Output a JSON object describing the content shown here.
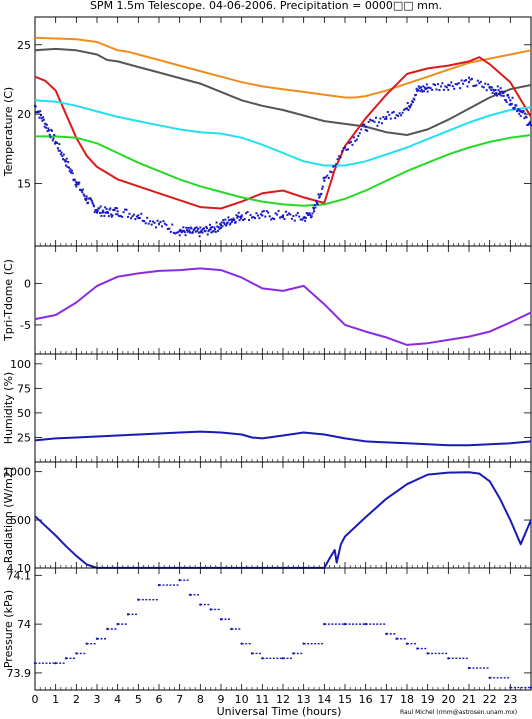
{
  "title": "SPM 1.5m Telescope. 04-06-2006. Precipitation = 0000□□ mm.",
  "xlabel": "Universal Time (hours)",
  "credit": "Raul Michel (rmm@astrosen.unam.mx)",
  "x_ticks": [
    "0",
    "1",
    "2",
    "3",
    "4",
    "5",
    "6",
    "7",
    "8",
    "9",
    "10",
    "11",
    "12",
    "13",
    "14",
    "15",
    "16",
    "17",
    "18",
    "19",
    "20",
    "21",
    "22",
    "23"
  ],
  "colors": {
    "orange": "#f08c1e",
    "gray": "#555555",
    "red": "#dd1a1a",
    "blue": "#1818c8",
    "cyan": "#22e0f0",
    "green": "#28d828",
    "purple": "#8a2be2",
    "navy": "#1a1ab4"
  },
  "chart_data": [
    {
      "type": "line",
      "ylabel": "Temperature (C)",
      "ylim": [
        10.5,
        27
      ],
      "yticks": [
        15,
        20,
        25
      ],
      "xlim": [
        0,
        24
      ],
      "series": [
        {
          "color": "orange",
          "x": [
            0,
            2,
            3,
            4,
            4.5,
            5,
            6,
            7,
            8,
            9,
            10,
            11,
            12,
            13,
            14,
            15,
            15.5,
            16,
            17,
            18,
            19,
            20,
            21,
            22,
            23,
            24
          ],
          "y": [
            25.5,
            25.4,
            25.2,
            24.6,
            24.5,
            24.3,
            23.9,
            23.5,
            23.1,
            22.7,
            22.3,
            22.0,
            21.8,
            21.6,
            21.4,
            21.2,
            21.2,
            21.3,
            21.7,
            22.2,
            22.7,
            23.2,
            23.7,
            24.0,
            24.3,
            24.6
          ]
        },
        {
          "color": "gray",
          "x": [
            0,
            1,
            2,
            3,
            3.5,
            4,
            5,
            6,
            7,
            8,
            9,
            10,
            11,
            12,
            13,
            14,
            15,
            16,
            17,
            18,
            19,
            20,
            21,
            22,
            23,
            24
          ],
          "y": [
            24.6,
            24.7,
            24.6,
            24.3,
            23.9,
            23.8,
            23.4,
            23.0,
            22.6,
            22.2,
            21.6,
            21.0,
            20.6,
            20.3,
            19.9,
            19.5,
            19.3,
            19.1,
            18.7,
            18.5,
            18.9,
            19.6,
            20.4,
            21.2,
            21.8,
            22.1
          ]
        },
        {
          "color": "red",
          "x": [
            0,
            0.5,
            1,
            1.5,
            2,
            2.5,
            3,
            4,
            5,
            6,
            7,
            8,
            9,
            10,
            11,
            12,
            13,
            14,
            14.5,
            15,
            16,
            17,
            18,
            19,
            20,
            21,
            21.5,
            22,
            23,
            24
          ],
          "y": [
            22.7,
            22.4,
            21.7,
            20.0,
            18.3,
            17.0,
            16.2,
            15.3,
            14.8,
            14.3,
            13.8,
            13.3,
            13.2,
            13.7,
            14.3,
            14.5,
            14.0,
            13.6,
            16.0,
            17.7,
            19.7,
            21.4,
            22.9,
            23.3,
            23.5,
            23.8,
            24.1,
            23.6,
            22.3,
            19.8
          ]
        },
        {
          "color": "cyan",
          "x": [
            0,
            1,
            2,
            3,
            4,
            5,
            6,
            7,
            8,
            9,
            10,
            11,
            12,
            13,
            14,
            15,
            16,
            17,
            18,
            19,
            20,
            21,
            22,
            23,
            24
          ],
          "y": [
            21.0,
            20.9,
            20.6,
            20.2,
            19.8,
            19.5,
            19.2,
            18.9,
            18.7,
            18.6,
            18.3,
            17.8,
            17.2,
            16.6,
            16.3,
            16.3,
            16.6,
            17.1,
            17.6,
            18.2,
            18.8,
            19.4,
            19.9,
            20.3,
            20.5
          ]
        },
        {
          "color": "green",
          "x": [
            0,
            1,
            2,
            3,
            4,
            5,
            6,
            7,
            8,
            9,
            10,
            11,
            12,
            13,
            14,
            15,
            16,
            17,
            18,
            19,
            20,
            21,
            22,
            23,
            24
          ],
          "y": [
            18.4,
            18.4,
            18.3,
            17.9,
            17.2,
            16.5,
            15.9,
            15.3,
            14.8,
            14.4,
            14.0,
            13.7,
            13.5,
            13.4,
            13.5,
            13.9,
            14.5,
            15.2,
            15.9,
            16.5,
            17.1,
            17.6,
            18.0,
            18.3,
            18.5
          ]
        },
        {
          "color": "blue",
          "style": "points",
          "x": [
            0,
            0.5,
            1,
            1.5,
            2,
            2.5,
            3,
            3.5,
            4,
            5,
            6,
            7,
            7.5,
            8,
            8.5,
            9,
            9.5,
            10,
            11,
            12,
            13,
            13.5,
            14,
            15,
            16,
            17,
            18,
            18.5,
            19,
            20,
            21,
            22,
            22.5,
            23,
            23.5,
            24
          ],
          "y": [
            20.6,
            19.3,
            18.0,
            16.6,
            15.1,
            13.9,
            13.1,
            12.9,
            13.0,
            12.7,
            12.1,
            11.6,
            11.5,
            11.5,
            11.7,
            12.0,
            12.4,
            12.7,
            12.7,
            12.7,
            12.5,
            13.0,
            15.2,
            17.6,
            19.1,
            19.8,
            20.4,
            21.7,
            21.9,
            22.1,
            22.3,
            21.9,
            21.6,
            21.0,
            20.2,
            19.2
          ]
        }
      ]
    },
    {
      "type": "line",
      "ylabel": "Tpri-Tdome (C)",
      "ylim": [
        -8.5,
        4.5
      ],
      "yticks": [
        -5,
        0
      ],
      "xlim": [
        0,
        24
      ],
      "series": [
        {
          "color": "purple",
          "x": [
            0,
            1,
            2,
            3,
            4,
            5,
            6,
            7,
            8,
            9,
            10,
            11,
            12,
            13,
            14,
            15,
            16,
            17,
            18,
            19,
            20,
            21,
            22,
            23,
            24
          ],
          "y": [
            -4.3,
            -3.8,
            -2.3,
            -0.3,
            0.8,
            1.2,
            1.5,
            1.6,
            1.8,
            1.6,
            0.7,
            -0.6,
            -0.9,
            -0.3,
            -2.5,
            -5.0,
            -5.8,
            -6.5,
            -7.4,
            -7.2,
            -6.8,
            -6.4,
            -5.8,
            -4.7,
            -3.5
          ]
        }
      ]
    },
    {
      "type": "line",
      "ylabel": "Humidity (%)",
      "ylim": [
        0,
        110
      ],
      "yticks": [
        25,
        50,
        75,
        100
      ],
      "xlim": [
        0,
        24
      ],
      "series": [
        {
          "color": "navy",
          "x": [
            0,
            1,
            2,
            3,
            4,
            5,
            6,
            7,
            8,
            9,
            10,
            10.5,
            11,
            12,
            13,
            14,
            15,
            16,
            17,
            18,
            19,
            20,
            21,
            22,
            23,
            24
          ],
          "y": [
            22,
            24,
            25,
            26,
            27,
            28,
            29,
            30,
            31,
            30,
            28,
            25,
            24,
            27,
            30,
            28,
            24,
            21,
            20,
            19,
            18,
            17,
            17,
            18,
            19,
            21
          ]
        }
      ]
    },
    {
      "type": "line",
      "ylabel": "Radiation (W/m2)",
      "ylim": [
        4.1,
        1100
      ],
      "yticks": [
        4.1,
        500,
        1000
      ],
      "ytick_labels": [
        "4.10",
        "500",
        "1000"
      ],
      "xlim": [
        0,
        24
      ],
      "series": [
        {
          "color": "navy",
          "x": [
            0,
            0.5,
            1,
            1.5,
            2,
            2.5,
            3,
            5,
            8,
            11,
            13,
            14,
            14.3,
            14.5,
            14.6,
            14.8,
            15,
            16,
            17,
            18,
            19,
            20,
            21,
            21.5,
            22,
            22.5,
            23,
            23.5,
            24
          ],
          "y": [
            540,
            440,
            340,
            230,
            130,
            40,
            5,
            5,
            5,
            5,
            5,
            5,
            120,
            190,
            60,
            250,
            330,
            530,
            720,
            870,
            970,
            990,
            995,
            980,
            900,
            720,
            500,
            250,
            500
          ]
        }
      ]
    },
    {
      "type": "scatter",
      "ylabel": "Pressure (kPa)",
      "ylim": [
        73.865,
        74.115
      ],
      "yticks": [
        73.9,
        74.0,
        74.1
      ],
      "ytick_labels": [
        "73.9",
        "74",
        "74.1"
      ],
      "xlim": [
        0,
        24
      ],
      "series": [
        {
          "color": "navy",
          "style": "steps",
          "x": [
            0,
            1,
            1.5,
            2,
            2.5,
            3,
            3.5,
            4,
            4.5,
            5,
            6,
            7,
            7.5,
            8,
            8.5,
            9,
            9.5,
            10,
            10.5,
            11,
            12,
            12.5,
            13,
            14,
            15,
            16,
            17,
            17.5,
            18,
            18.5,
            19,
            20,
            21,
            22,
            23,
            24
          ],
          "y": [
            73.92,
            73.92,
            73.93,
            73.94,
            73.96,
            73.97,
            73.99,
            74.0,
            74.02,
            74.05,
            74.08,
            74.09,
            74.06,
            74.04,
            74.03,
            74.01,
            73.99,
            73.96,
            73.94,
            73.93,
            73.93,
            73.94,
            73.96,
            74.0,
            74.0,
            74.0,
            73.98,
            73.97,
            73.96,
            73.95,
            73.94,
            73.93,
            73.91,
            73.89,
            73.87,
            73.87
          ]
        }
      ]
    }
  ]
}
